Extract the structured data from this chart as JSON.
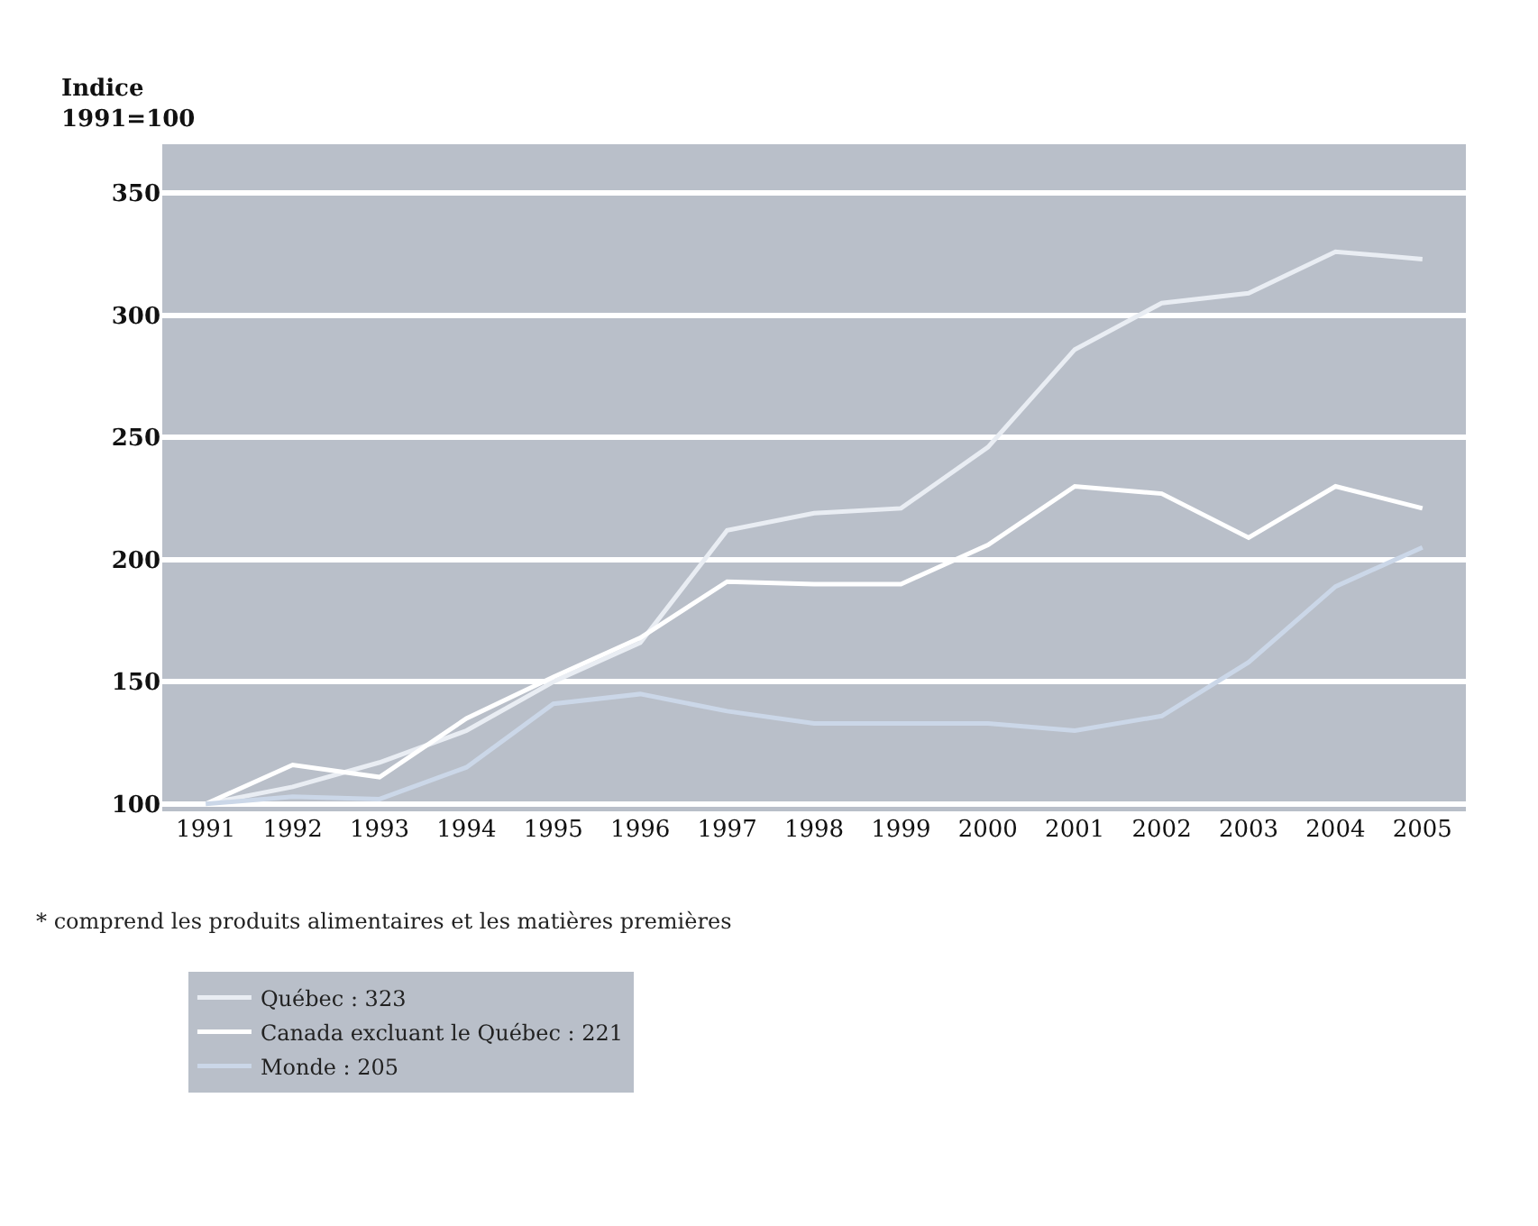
{
  "chart_data": {
    "type": "line",
    "ylabel": "Indice\n1991=100",
    "categories": [
      "1991",
      "1992",
      "1993",
      "1994",
      "1995",
      "1996",
      "1997",
      "1998",
      "1999",
      "2000",
      "2001",
      "2002",
      "2003",
      "2004",
      "2005"
    ],
    "series": [
      {
        "name": "Québec : 323",
        "color": "#e9edf3",
        "values": [
          100,
          107,
          117,
          130,
          150,
          166,
          212,
          219,
          221,
          246,
          286,
          305,
          309,
          326,
          323
        ]
      },
      {
        "name": "Canada excluant le Québec : 221",
        "color": "#ffffff",
        "values": [
          100,
          116,
          111,
          135,
          152,
          168,
          191,
          190,
          190,
          206,
          230,
          227,
          209,
          230,
          221
        ]
      },
      {
        "name": "Monde : 205",
        "color": "#cbd7e8",
        "values": [
          100,
          103,
          102,
          115,
          141,
          145,
          138,
          133,
          133,
          133,
          130,
          136,
          158,
          189,
          205
        ]
      }
    ],
    "ylim": [
      97,
      370
    ],
    "yticks": [
      100,
      150,
      200,
      250,
      300,
      350
    ],
    "grid": "y",
    "legend": "bottom",
    "marker": "none",
    "line_style": "solid",
    "annotations": [
      "* comprend les produits alimentaires et les matières premières"
    ]
  }
}
